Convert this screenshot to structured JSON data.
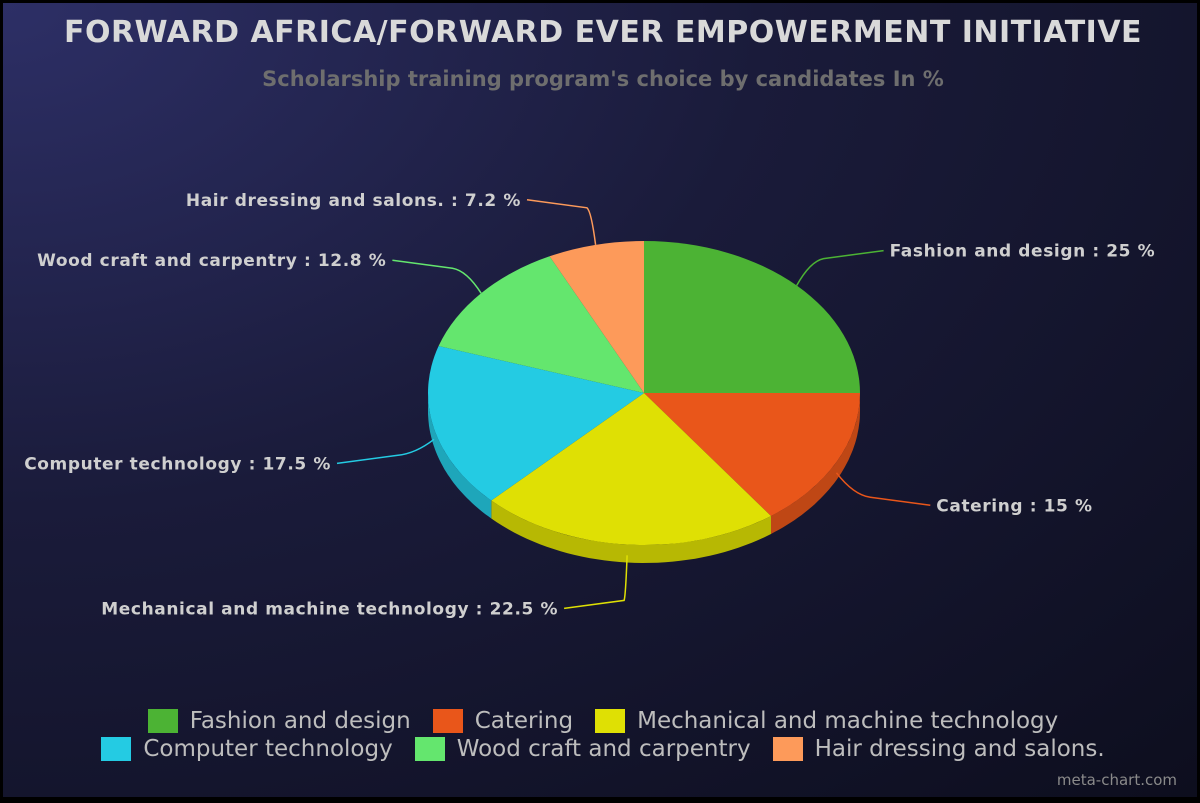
{
  "chart_data": {
    "type": "pie",
    "title": "FORWARD AFRICA/FORWARD EVER EMPOWERMENT INITIATIVE",
    "subtitle": "Scholarship training program's choice by candidates In %",
    "categories": [
      "Fashion and design",
      "Catering",
      "Mechanical and machine technology",
      "Computer technology",
      "Wood craft and carpentry",
      "Hair dressing and salons."
    ],
    "values": [
      25,
      15,
      22.5,
      17.5,
      12.8,
      7.2
    ],
    "slice_labels": [
      "Fashion and design : 25 %",
      "Catering : 15 %",
      "Mechanical and machine technology : 22.5 %",
      "Computer technology : 17.5 %",
      "Wood craft and carpentry : 12.8 %",
      "Hair dressing and salons. : 7.2 %"
    ],
    "colors": [
      "#4cb334",
      "#e9561a",
      "#dfe004",
      "#24cbe3",
      "#64e66e",
      "#fd9a5a"
    ],
    "legend_position": "bottom"
  },
  "watermark": "meta-chart.com"
}
